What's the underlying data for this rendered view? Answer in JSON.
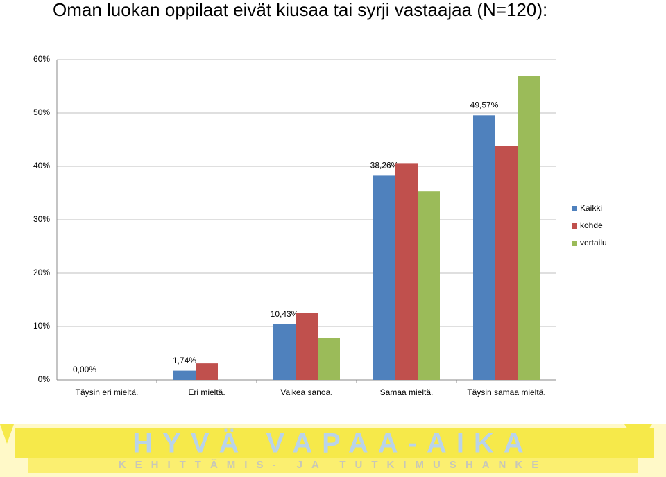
{
  "chart_data": {
    "type": "bar",
    "title": "Oman luokan oppilaat eivät kiusaa tai syrji vastaajaa (N=120):",
    "categories": [
      "Täysin eri mieltä.",
      "Eri mieltä.",
      "Vaikea sanoa.",
      "Samaa mieltä.",
      "Täysin samaa mieltä."
    ],
    "series": [
      {
        "name": "Kaikki",
        "color": "#4f81bd",
        "values": [
          0,
          1.74,
          10.43,
          38.26,
          49.57
        ],
        "value_labels": [
          "0,00%",
          "1,74%",
          "10,43%",
          "38,26%",
          "49,57%"
        ]
      },
      {
        "name": "kohde",
        "color": "#c0504d",
        "values": [
          0,
          3.1,
          12.5,
          40.6,
          43.8
        ]
      },
      {
        "name": "vertailu",
        "color": "#9bbb59",
        "values": [
          0,
          0,
          7.8,
          35.3,
          57.0
        ]
      }
    ],
    "ylim": [
      0,
      60
    ],
    "yticks": [
      {
        "value": 0,
        "label": "0%"
      },
      {
        "value": 10,
        "label": "10%"
      },
      {
        "value": 20,
        "label": "20%"
      },
      {
        "value": 30,
        "label": "30%"
      },
      {
        "value": 40,
        "label": "40%"
      },
      {
        "value": 50,
        "label": "50%"
      },
      {
        "value": 60,
        "label": "60%"
      }
    ],
    "grid": true,
    "legend": "right"
  },
  "banner": {
    "title": "HYVÄ VAPAA-AIKA",
    "subtitle": "KEHITTÄMIS- JA TUTKIMUSHANKE"
  }
}
